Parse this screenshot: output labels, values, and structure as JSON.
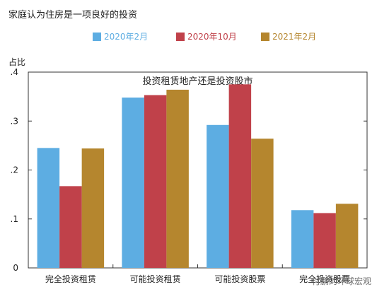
{
  "figure": {
    "title": "家庭认为住房是一项良好的投资",
    "watermark": "付鹏的环球宏观"
  },
  "colors": {
    "series": [
      "#5dade2",
      "#c0414a",
      "#b5862e"
    ]
  },
  "chart_data": {
    "type": "bar",
    "title": "投资租赁地产还是投资股市",
    "ylabel": "占比",
    "xlabel": "",
    "categories": [
      "完全投资租赁",
      "可能投资租赁",
      "可能投资股票",
      "完全投资股票"
    ],
    "series": [
      {
        "name": "2020年2月",
        "values": [
          0.245,
          0.348,
          0.292,
          0.118
        ]
      },
      {
        "name": "2020年10月",
        "values": [
          0.167,
          0.353,
          0.375,
          0.112
        ]
      },
      {
        "name": "2021年2月",
        "values": [
          0.244,
          0.364,
          0.264,
          0.131
        ]
      }
    ],
    "ylim": [
      0,
      0.4
    ],
    "yticks": [
      0,
      0.1,
      0.2,
      0.3,
      0.4
    ],
    "ytick_labels": [
      "0",
      ".1",
      ".2",
      ".3",
      ".4"
    ],
    "legend_position": "top",
    "grid": false
  }
}
